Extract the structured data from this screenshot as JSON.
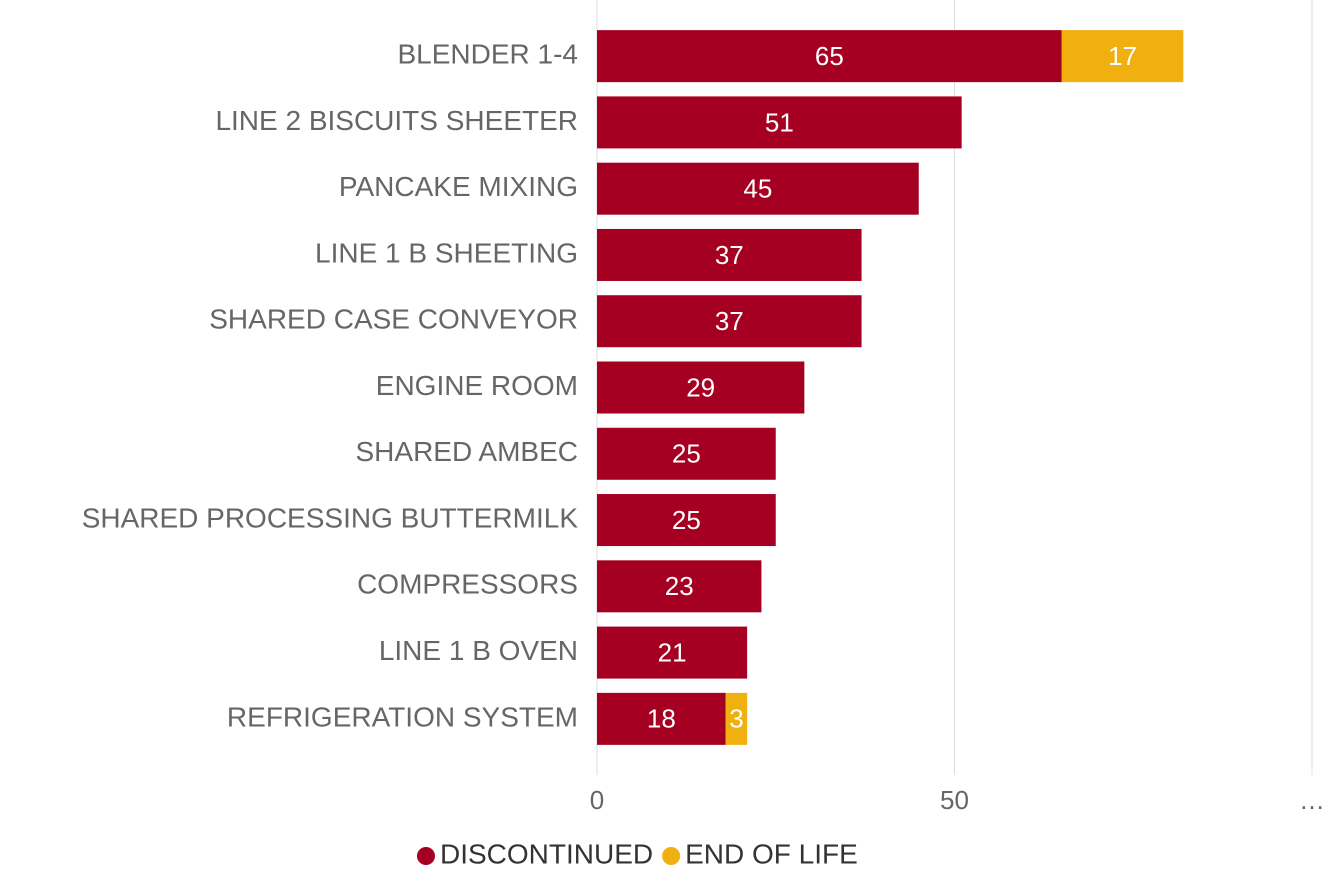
{
  "chart_data": {
    "type": "bar",
    "orientation": "horizontal",
    "stacked": true,
    "categories": [
      "BLENDER 1-4",
      "LINE 2 BISCUITS SHEETER",
      "PANCAKE MIXING",
      "LINE 1 B SHEETING",
      "SHARED CASE CONVEYOR",
      "ENGINE ROOM",
      "SHARED AMBEC",
      "SHARED PROCESSING BUTTERMILK",
      "COMPRESSORS",
      "LINE 1 B OVEN",
      "REFRIGERATION SYSTEM"
    ],
    "series": [
      {
        "name": "DISCONTINUED",
        "color": "#a50021",
        "values": [
          65,
          51,
          45,
          37,
          37,
          29,
          25,
          25,
          23,
          21,
          18
        ]
      },
      {
        "name": "END OF LIFE",
        "color": "#f0b00f",
        "values": [
          17,
          null,
          null,
          null,
          null,
          null,
          null,
          null,
          null,
          null,
          3
        ]
      }
    ],
    "xlim": [
      0,
      100
    ],
    "xticks": [
      0,
      50,
      {
        "value": 100,
        "label": "…"
      }
    ],
    "grid": true,
    "legend": "bottom"
  }
}
